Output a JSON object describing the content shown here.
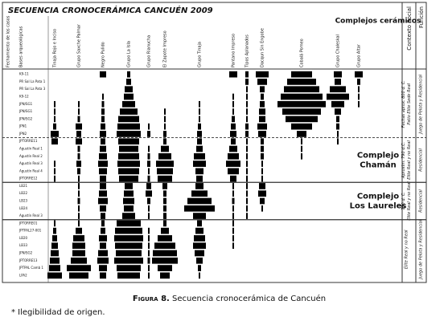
{
  "title": "SECUENCIA CRONOCERÁMICA CANCUÉN 2009",
  "header_complexes": "Complejos cerámicos",
  "header_context": "Contexto Social",
  "header_function": "Función",
  "row_headers": [
    "Fechamiento de los casos",
    "Bases arqueológicas"
  ],
  "columns": [
    {
      "label": "Tinaja Rojo e Inciso",
      "widths": [
        0,
        0,
        0,
        0,
        2,
        2,
        2,
        4,
        10,
        8,
        0,
        0,
        2,
        2,
        2,
        0,
        0,
        0,
        0,
        0,
        2,
        4,
        6,
        8,
        10,
        12,
        14,
        18
      ]
    },
    {
      "label": "Grupo Saxche Palmar",
      "widths": [
        0,
        0,
        0,
        0,
        2,
        2,
        3,
        8,
        6,
        8,
        3,
        3,
        6,
        4,
        2,
        2,
        2,
        3,
        2,
        2,
        2,
        8,
        14,
        16,
        16,
        20,
        30,
        24
      ]
    },
    {
      "label": "Negro Pulido",
      "widths": [
        8,
        0,
        0,
        2,
        3,
        4,
        4,
        6,
        8,
        6,
        8,
        10,
        12,
        10,
        8,
        8,
        10,
        12,
        8,
        6,
        4,
        6,
        10,
        8,
        12,
        14,
        10,
        8
      ]
    },
    {
      "label": "Grupo La Isla",
      "widths": [
        4,
        6,
        10,
        12,
        16,
        22,
        26,
        28,
        30,
        26,
        24,
        26,
        28,
        26,
        24,
        10,
        12,
        14,
        12,
        16,
        30,
        34,
        36,
        34,
        32,
        36,
        30,
        28
      ]
    },
    {
      "label": "Grupo Rianucha",
      "widths": [
        0,
        0,
        0,
        0,
        0,
        0,
        0,
        2,
        4,
        0,
        2,
        3,
        4,
        2,
        3,
        6,
        8,
        4,
        2,
        2,
        0,
        2,
        2,
        2,
        2,
        3,
        2,
        2
      ]
    },
    {
      "label": "El Zapote Impreso",
      "widths": [
        0,
        0,
        0,
        0,
        0,
        2,
        2,
        2,
        4,
        4,
        10,
        16,
        22,
        20,
        18,
        6,
        4,
        4,
        4,
        4,
        4,
        10,
        18,
        26,
        30,
        32,
        18,
        12
      ]
    },
    {
      "label": "Grupo Tinaja",
      "widths": [
        0,
        0,
        0,
        0,
        2,
        2,
        2,
        4,
        6,
        6,
        8,
        14,
        16,
        10,
        8,
        10,
        20,
        30,
        38,
        16,
        6,
        10,
        14,
        16,
        12,
        8,
        4,
        2
      ]
    },
    {
      "label": "Pantano Impreso",
      "widths": [
        10,
        0,
        0,
        2,
        2,
        2,
        4,
        6,
        8,
        6,
        10,
        14,
        18,
        14,
        8,
        2,
        2,
        3,
        2,
        2,
        2,
        2,
        2,
        2,
        0,
        0,
        0,
        0
      ]
    },
    {
      "label": "Tipos Aplanados",
      "widths": [
        4,
        4,
        2,
        2,
        2,
        2,
        2,
        4,
        4,
        2,
        2,
        2,
        2,
        2,
        2,
        2,
        2,
        2,
        2,
        2,
        0,
        0,
        0,
        0,
        0,
        0,
        0,
        0
      ]
    },
    {
      "label": "Dacqun Sin Engobe",
      "widths": [
        16,
        12,
        6,
        4,
        6,
        8,
        8,
        12,
        10,
        4,
        4,
        4,
        2,
        2,
        2,
        8,
        10,
        6,
        2,
        0,
        0,
        0,
        0,
        0,
        0,
        0,
        0,
        0
      ]
    },
    {
      "label": "Cobalá Pomeo",
      "widths": [
        26,
        36,
        44,
        52,
        60,
        48,
        40,
        26,
        12,
        2,
        2,
        2,
        0,
        0,
        0,
        0,
        0,
        0,
        0,
        0,
        0,
        0,
        0,
        0,
        0,
        0,
        0,
        0
      ]
    },
    {
      "label": "Grupo Chaleskal",
      "widths": [
        10,
        8,
        20,
        28,
        16,
        8,
        4,
        4,
        2,
        2,
        0,
        0,
        0,
        0,
        0,
        0,
        0,
        0,
        0,
        0,
        0,
        0,
        0,
        0,
        0,
        0,
        0,
        0
      ]
    },
    {
      "label": "Grupo Altar",
      "widths": [
        10,
        4,
        2,
        2,
        2,
        0,
        0,
        0,
        0,
        0,
        0,
        0,
        0,
        0,
        0,
        0,
        0,
        0,
        0,
        0,
        0,
        0,
        0,
        0,
        0,
        0,
        0,
        0
      ]
    }
  ],
  "sections": [
    {
      "rows": [
        "K9-11",
        "PR Sal La Pata 1",
        "PR Sal La Pata 3",
        "K9-12",
        "JPN/SG1",
        "JPN/SG1",
        "JPN/SG2",
        "JPN1",
        "JPN2"
      ],
      "context": [
        "Fechas aprox. 800 d. C.",
        "Patio Elite Sede Real"
      ],
      "function": "Juego de Pelota y Residencial"
    },
    {
      "rows": [
        "JPTORRE11",
        "Agustín Real 1",
        "Agustín Real 2",
        "Agustín Real 3",
        "Agustín Real 4",
        "JPTORRE12"
      ],
      "context": [
        "Aproxim. 790 d.C.",
        "Elite Real y no Real"
      ],
      "function": "Residencial",
      "complex": [
        "Complejo",
        "Chamán"
      ]
    },
    {
      "rows": [
        "LB21",
        "LB22",
        "LB23",
        "LB24",
        "Agustín Real 3"
      ],
      "context": [
        "750 d. C.",
        "Elite Real y no Real"
      ],
      "function": "Residencial",
      "complex": [
        "Complejo",
        "Los Laureles"
      ]
    },
    {
      "rows": [
        "JPTORRE01",
        "JPTPAL27-001",
        "LB20",
        "LB33",
        "JPN/SG2",
        "JPTORRE13",
        "JPTPAL Camb 1",
        "LPA2"
      ],
      "context": [
        "Elite Real y no Real"
      ],
      "function": "Juego de Pelota y Residencial"
    }
  ],
  "caption": {
    "label": "Figura 8.",
    "text": "Secuencia cronocerámica de Cancuén"
  },
  "footnote": "* Ilegibilidad de origen."
}
